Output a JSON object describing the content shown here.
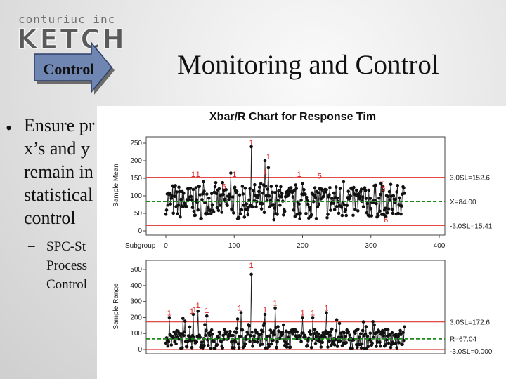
{
  "logo": {
    "line1": "conturiuc inc",
    "line2": "KETCH"
  },
  "control_label": "Control",
  "slide_title": "Monitoring and Control",
  "bullet": {
    "marker": "•",
    "lines": [
      "Ensure pr",
      "x’s and y",
      "remain in",
      "statistical",
      "control"
    ]
  },
  "sub_bullet": {
    "marker": "–",
    "lines": [
      "SPC-St",
      "Process",
      "Control"
    ]
  },
  "chart_data": {
    "type": "line",
    "title": "Xbar/R Chart for Response Tim",
    "xlabel": "Subgroup",
    "x_ticks": [
      0,
      100,
      200,
      300,
      400
    ],
    "xlim": [
      0,
      400
    ],
    "n_points": 350,
    "charts": [
      {
        "ylabel": "Sample Mean",
        "ylim": [
          0,
          260
        ],
        "y_ticks": [
          0,
          50,
          100,
          150,
          200,
          250
        ],
        "ucl": 152.6,
        "center": 84.0,
        "lcl": 15.41,
        "labels": {
          "ucl": "3.0SL=152.6",
          "center": "X=84.00",
          "lcl": "-3.0SL=15.41"
        },
        "spikes": [
          [
            55,
            140
          ],
          [
            95,
            165
          ],
          [
            125,
            240
          ],
          [
            145,
            200
          ],
          [
            150,
            180
          ],
          [
            200,
            135
          ],
          [
            225,
            120
          ],
          [
            260,
            140
          ],
          [
            315,
            135
          ],
          [
            318,
            115
          ],
          [
            320,
            60
          ],
          [
            322,
            40
          ]
        ],
        "out_of_control_markers": [
          {
            "x": 125,
            "y": 240,
            "text": "1"
          },
          {
            "x": 150,
            "y": 200,
            "text": "1"
          },
          {
            "x": 40,
            "y": 150,
            "text": "1"
          },
          {
            "x": 47,
            "y": 150,
            "text": "1"
          },
          {
            "x": 100,
            "y": 150,
            "text": "1"
          },
          {
            "x": 145,
            "y": 155,
            "text": "1"
          },
          {
            "x": 195,
            "y": 150,
            "text": "1"
          },
          {
            "x": 225,
            "y": 145,
            "text": "5"
          },
          {
            "x": 85,
            "y": 115,
            "text": "6"
          },
          {
            "x": 316,
            "y": 135,
            "text": "1"
          },
          {
            "x": 318,
            "y": 110,
            "text": "6"
          },
          {
            "x": 322,
            "y": 20,
            "text": "6"
          }
        ]
      },
      {
        "ylabel": "Sample Range",
        "ylim": [
          0,
          540
        ],
        "y_ticks": [
          0,
          100,
          200,
          300,
          400,
          500
        ],
        "ucl": 172.6,
        "center": 67.04,
        "lcl": 0.0,
        "labels": {
          "ucl": "3.0SL=172.6",
          "center": "R=67.04",
          "lcl": "-3.0SL=0.000"
        },
        "spikes": [
          [
            125,
            470
          ],
          [
            5,
            200
          ],
          [
            40,
            220
          ],
          [
            47,
            240
          ],
          [
            60,
            210
          ],
          [
            110,
            230
          ],
          [
            145,
            220
          ],
          [
            160,
            260
          ],
          [
            200,
            200
          ],
          [
            215,
            200
          ],
          [
            235,
            230
          ]
        ],
        "out_of_control_markers": [
          {
            "x": 125,
            "y": 500,
            "text": "1"
          },
          {
            "x": 5,
            "y": 205,
            "text": "1"
          },
          {
            "x": 38,
            "y": 215,
            "text": "1"
          },
          {
            "x": 42,
            "y": 225,
            "text": "1"
          },
          {
            "x": 47,
            "y": 250,
            "text": "1"
          },
          {
            "x": 60,
            "y": 220,
            "text": "1"
          },
          {
            "x": 108,
            "y": 235,
            "text": "1"
          },
          {
            "x": 145,
            "y": 225,
            "text": "1"
          },
          {
            "x": 160,
            "y": 265,
            "text": "1"
          },
          {
            "x": 200,
            "y": 205,
            "text": "1"
          },
          {
            "x": 215,
            "y": 205,
            "text": "1"
          },
          {
            "x": 235,
            "y": 235,
            "text": "1"
          }
        ]
      }
    ]
  }
}
